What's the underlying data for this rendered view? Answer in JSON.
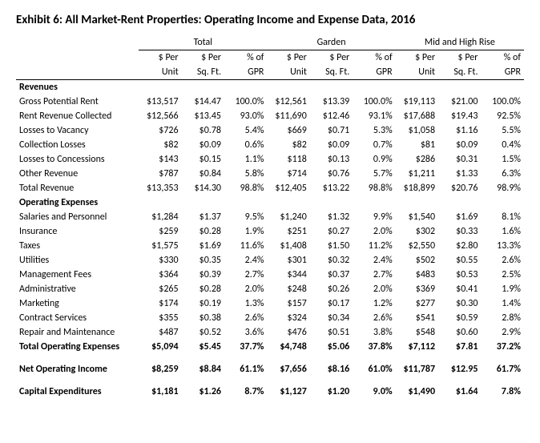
{
  "title": "Exhibit 6: All Market-Rent Properties: Operating Income and Expense Data, 2016",
  "groups": [
    "Total",
    "Garden",
    "Mid and High Rise"
  ],
  "subheaders": {
    "unit_l1": "$ Per",
    "unit_l2": "Unit",
    "sqft_l1": "$ Per",
    "sqft_l2": "Sq. Ft.",
    "pct_l1": "% of",
    "pct_l2": "GPR"
  },
  "sections": {
    "revenues": "Revenues",
    "opex": "Operating Expenses"
  },
  "rows": {
    "gpr": {
      "label": "Gross Potential Rent",
      "t": [
        "$13,517",
        "$14.47",
        "100.0%"
      ],
      "g": [
        "$12,561",
        "$13.39",
        "100.0%"
      ],
      "m": [
        "$19,113",
        "$21.00",
        "100.0%"
      ]
    },
    "rrc": {
      "label": "Rent Revenue Collected",
      "t": [
        "$12,566",
        "$13.45",
        "93.0%"
      ],
      "g": [
        "$11,690",
        "$12.46",
        "93.1%"
      ],
      "m": [
        "$17,688",
        "$19.43",
        "92.5%"
      ]
    },
    "lvac": {
      "label": "Losses to Vacancy",
      "t": [
        "$726",
        "$0.78",
        "5.4%"
      ],
      "g": [
        "$669",
        "$0.71",
        "5.3%"
      ],
      "m": [
        "$1,058",
        "$1.16",
        "5.5%"
      ]
    },
    "lcol": {
      "label": "Collection Losses",
      "t": [
        "$82",
        "$0.09",
        "0.6%"
      ],
      "g": [
        "$82",
        "$0.09",
        "0.7%"
      ],
      "m": [
        "$81",
        "$0.09",
        "0.4%"
      ]
    },
    "lcon": {
      "label": "Losses to Concessions",
      "t": [
        "$143",
        "$0.15",
        "1.1%"
      ],
      "g": [
        "$118",
        "$0.13",
        "0.9%"
      ],
      "m": [
        "$286",
        "$0.31",
        "1.5%"
      ]
    },
    "orev": {
      "label": "Other Revenue",
      "t": [
        "$787",
        "$0.84",
        "5.8%"
      ],
      "g": [
        "$714",
        "$0.76",
        "5.7%"
      ],
      "m": [
        "$1,211",
        "$1.33",
        "6.3%"
      ]
    },
    "trev": {
      "label": "Total Revenue",
      "t": [
        "$13,353",
        "$14.30",
        "98.8%"
      ],
      "g": [
        "$12,405",
        "$13.22",
        "98.8%"
      ],
      "m": [
        "$18,899",
        "$20.76",
        "98.9%"
      ]
    },
    "sal": {
      "label": "Salaries and Personnel",
      "t": [
        "$1,284",
        "$1.37",
        "9.5%"
      ],
      "g": [
        "$1,240",
        "$1.32",
        "9.9%"
      ],
      "m": [
        "$1,540",
        "$1.69",
        "8.1%"
      ]
    },
    "ins": {
      "label": "Insurance",
      "t": [
        "$259",
        "$0.28",
        "1.9%"
      ],
      "g": [
        "$251",
        "$0.27",
        "2.0%"
      ],
      "m": [
        "$302",
        "$0.33",
        "1.6%"
      ]
    },
    "tax": {
      "label": "Taxes",
      "t": [
        "$1,575",
        "$1.69",
        "11.6%"
      ],
      "g": [
        "$1,408",
        "$1.50",
        "11.2%"
      ],
      "m": [
        "$2,550",
        "$2.80",
        "13.3%"
      ]
    },
    "util": {
      "label": "Utilities",
      "t": [
        "$330",
        "$0.35",
        "2.4%"
      ],
      "g": [
        "$301",
        "$0.32",
        "2.4%"
      ],
      "m": [
        "$502",
        "$0.55",
        "2.6%"
      ]
    },
    "mgmt": {
      "label": "Management Fees",
      "t": [
        "$364",
        "$0.39",
        "2.7%"
      ],
      "g": [
        "$344",
        "$0.37",
        "2.7%"
      ],
      "m": [
        "$483",
        "$0.53",
        "2.5%"
      ]
    },
    "admin": {
      "label": "Administrative",
      "t": [
        "$265",
        "$0.28",
        "2.0%"
      ],
      "g": [
        "$248",
        "$0.26",
        "2.0%"
      ],
      "m": [
        "$369",
        "$0.41",
        "1.9%"
      ]
    },
    "mkt": {
      "label": "Marketing",
      "t": [
        "$174",
        "$0.19",
        "1.3%"
      ],
      "g": [
        "$157",
        "$0.17",
        "1.2%"
      ],
      "m": [
        "$277",
        "$0.30",
        "1.4%"
      ]
    },
    "csvc": {
      "label": "Contract Services",
      "t": [
        "$355",
        "$0.38",
        "2.6%"
      ],
      "g": [
        "$324",
        "$0.34",
        "2.6%"
      ],
      "m": [
        "$541",
        "$0.59",
        "2.8%"
      ]
    },
    "rm": {
      "label": "Repair and Maintenance",
      "t": [
        "$487",
        "$0.52",
        "3.6%"
      ],
      "g": [
        "$476",
        "$0.51",
        "3.8%"
      ],
      "m": [
        "$548",
        "$0.60",
        "2.9%"
      ]
    },
    "topex": {
      "label": "Total Operating Expenses",
      "t": [
        "$5,094",
        "$5.45",
        "37.7%"
      ],
      "g": [
        "$4,748",
        "$5.06",
        "37.8%"
      ],
      "m": [
        "$7,112",
        "$7.81",
        "37.2%"
      ]
    },
    "noi": {
      "label": "Net Operating Income",
      "t": [
        "$8,259",
        "$8.84",
        "61.1%"
      ],
      "g": [
        "$7,656",
        "$8.16",
        "61.0%"
      ],
      "m": [
        "$11,787",
        "$12.95",
        "61.7%"
      ]
    },
    "capex": {
      "label": "Capital Expenditures",
      "t": [
        "$1,181",
        "$1.26",
        "8.7%"
      ],
      "g": [
        "$1,127",
        "$1.20",
        "9.0%"
      ],
      "m": [
        "$1,490",
        "$1.64",
        "7.8%"
      ]
    }
  }
}
